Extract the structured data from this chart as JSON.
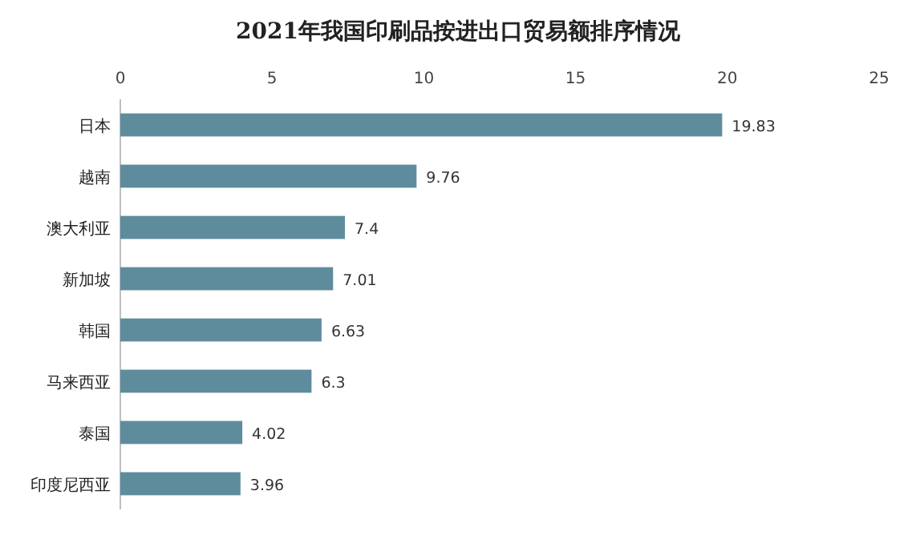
{
  "chart_data": {
    "type": "bar",
    "orientation": "horizontal",
    "title": "2021年我国印刷品按进出口贸易额排序情况",
    "categories": [
      "日本",
      "越南",
      "澳大利亚",
      "新加坡",
      "韩国",
      "马来西亚",
      "泰国",
      "印度尼西亚"
    ],
    "values": [
      19.83,
      9.76,
      7.4,
      7.01,
      6.63,
      6.3,
      4.02,
      3.96
    ],
    "color": "#5f8c9c",
    "xlim": [
      0,
      25
    ],
    "xticks": [
      0,
      5,
      10,
      15,
      20,
      25
    ],
    "data_labels": true
  }
}
